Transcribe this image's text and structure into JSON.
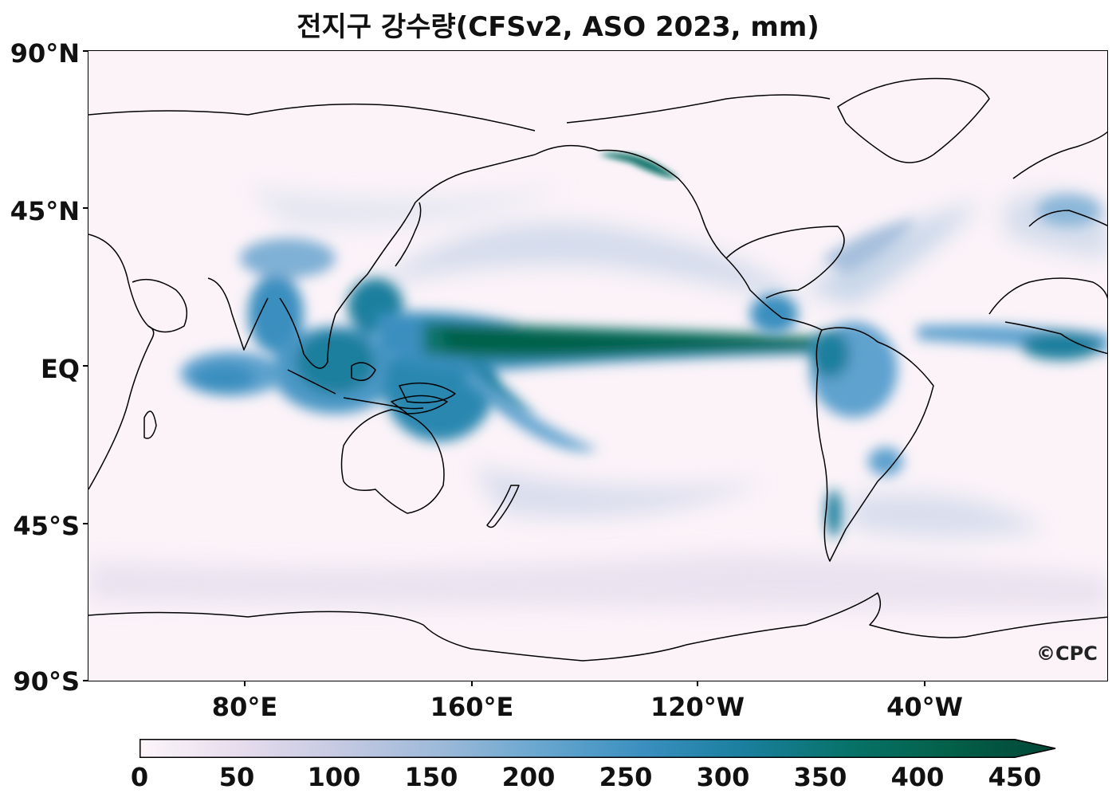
{
  "title": "전지구 강수량(CFSv2, ASO 2023, mm)",
  "watermark": "©CPC",
  "lat_labels": [
    "90°N",
    "45°N",
    "EQ",
    "45°S",
    "90°S"
  ],
  "lon_labels": [
    "80°E",
    "160°E",
    "120°W",
    "40°W"
  ],
  "colorbar": {
    "min": 0,
    "max": 450,
    "extend": "max",
    "tick_labels": [
      "0",
      "50",
      "100",
      "150",
      "200",
      "250",
      "300",
      "350",
      "400",
      "450"
    ],
    "colors": [
      "#fcf5f9",
      "#e6dced",
      "#c4c9e2",
      "#9cb9d9",
      "#67a6cf",
      "#3a8fbf",
      "#1a7f9e",
      "#07736a",
      "#03614a",
      "#014636"
    ]
  },
  "chart_data": {
    "type": "heatmap",
    "variable": "precipitation",
    "units": "mm",
    "lat_range": [
      -90,
      90
    ],
    "lon_range": [
      36,
      396
    ],
    "colorbar_range": [
      0,
      450
    ]
  }
}
